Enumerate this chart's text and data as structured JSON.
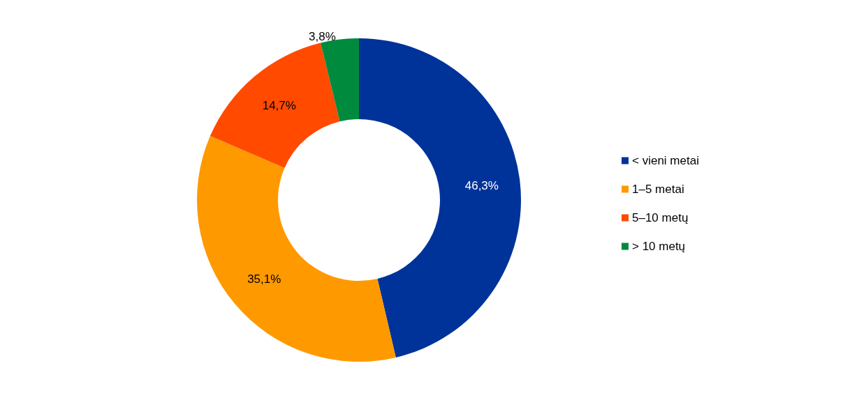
{
  "chart_data": {
    "type": "donut",
    "categories": [
      "< vieni metai",
      "1–5 metai",
      "5–10 metų",
      "> 10 metų"
    ],
    "values": [
      46.3,
      35.1,
      14.7,
      3.8
    ],
    "colors": [
      "#003399",
      "#ff9900",
      "#ff4a00",
      "#008a3e"
    ],
    "value_labels": [
      "46,3%",
      "35,1%",
      "14,7%",
      "3,8%"
    ],
    "legend": "right"
  }
}
